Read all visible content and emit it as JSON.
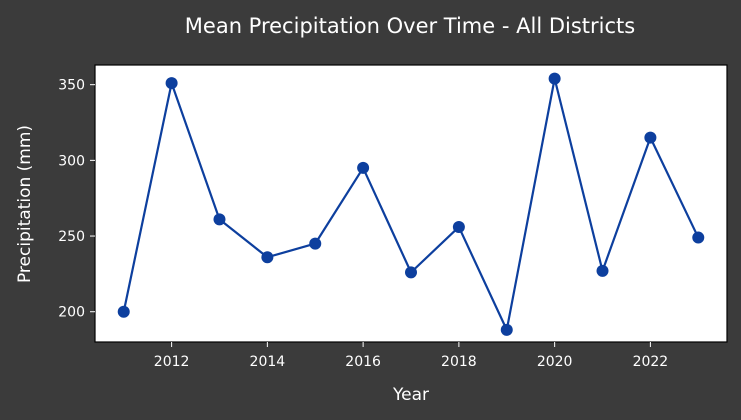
{
  "chart_data": {
    "type": "line",
    "title": "Mean Precipitation Over Time - All Districts",
    "xlabel": "Year",
    "ylabel": "Precipitation (mm)",
    "x": [
      2011,
      2012,
      2013,
      2014,
      2015,
      2016,
      2017,
      2018,
      2019,
      2020,
      2021,
      2022,
      2023
    ],
    "series": [
      {
        "values": [
          200,
          351,
          261,
          236,
          245,
          295,
          226,
          256,
          188,
          354,
          227,
          315,
          249
        ],
        "color": "#0d3f9e"
      }
    ],
    "xticks": [
      "2012",
      "2014",
      "2016",
      "2018",
      "2020",
      "2022"
    ],
    "yticks": [
      "200",
      "250",
      "300",
      "350"
    ],
    "xlim": [
      2010.4,
      2023.6
    ],
    "ylim": [
      180,
      363
    ],
    "grid": false,
    "background": "#3b3b3b",
    "plot_background": "#ffffff",
    "text_color": "#ffffff"
  }
}
